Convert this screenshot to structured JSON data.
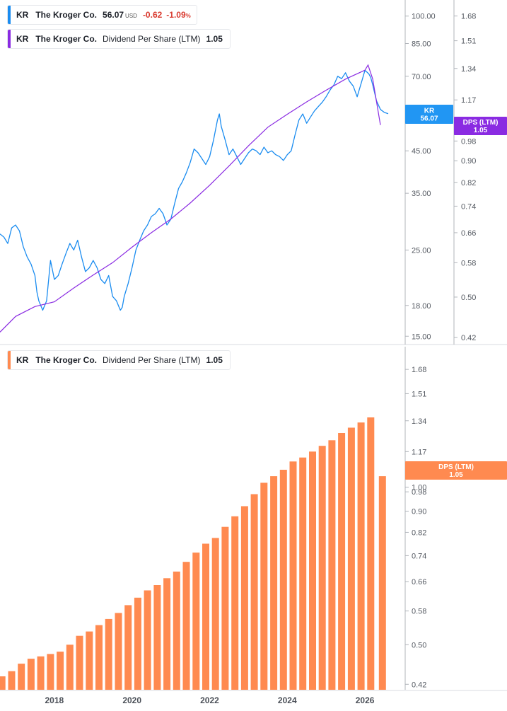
{
  "legends": {
    "price": {
      "ticker": "KR",
      "name": "The Kroger Co.",
      "value": "56.07",
      "currency": "USD",
      "change": "-0.62",
      "change_pct": "-1.09",
      "pct_symbol": "%",
      "color": "#1a8cf0"
    },
    "dps_overlay": {
      "ticker": "KR",
      "name": "The Kroger Co.",
      "label": "Dividend Per Share (LTM)",
      "value": "1.05",
      "color": "#8a2be2"
    },
    "dps_bars": {
      "ticker": "KR",
      "name": "The Kroger Co.",
      "label": "Dividend Per Share (LTM)",
      "value": "1.05",
      "color": "#ff8a50"
    }
  },
  "badges": {
    "price": {
      "line1": "KR",
      "line2": "56.07",
      "color": "#2196f3"
    },
    "dps_top": {
      "line1": "DPS (LTM)",
      "line2": "1.05",
      "color": "#8a2be2"
    },
    "dps_bottom": {
      "line1": "DPS (LTM)",
      "line2": "1.05",
      "color": "#ff8a50"
    }
  },
  "chart_data": [
    {
      "type": "line",
      "series": [
        {
          "name": "KR",
          "color": "#1a8cf0",
          "axis": "price",
          "x": [
            2016.6,
            2016.7,
            2016.8,
            2016.9,
            2017.0,
            2017.1,
            2017.2,
            2017.3,
            2017.4,
            2017.5,
            2017.55,
            2017.6,
            2017.7,
            2017.8,
            2017.9,
            2018.0,
            2018.1,
            2018.2,
            2018.3,
            2018.4,
            2018.5,
            2018.6,
            2018.7,
            2018.8,
            2018.9,
            2019.0,
            2019.1,
            2019.2,
            2019.3,
            2019.4,
            2019.5,
            2019.6,
            2019.7,
            2019.75,
            2019.8,
            2019.9,
            2020.0,
            2020.1,
            2020.2,
            2020.3,
            2020.4,
            2020.5,
            2020.6,
            2020.7,
            2020.8,
            2020.9,
            2021.0,
            2021.1,
            2021.2,
            2021.3,
            2021.4,
            2021.5,
            2021.6,
            2021.7,
            2021.8,
            2021.9,
            2022.0,
            2022.1,
            2022.2,
            2022.25,
            2022.3,
            2022.4,
            2022.5,
            2022.6,
            2022.7,
            2022.8,
            2022.9,
            2023.0,
            2023.1,
            2023.2,
            2023.3,
            2023.4,
            2023.5,
            2023.6,
            2023.7,
            2023.8,
            2023.9,
            2024.0,
            2024.1,
            2024.2,
            2024.3,
            2024.4,
            2024.5,
            2024.6,
            2024.7,
            2024.8,
            2024.9,
            2025.0,
            2025.1,
            2025.2,
            2025.3,
            2025.4,
            2025.5,
            2025.6,
            2025.7,
            2025.8,
            2025.9,
            2026.0,
            2026.1,
            2026.15,
            2026.2,
            2026.3,
            2026.4,
            2026.5,
            2026.6
          ],
          "values": [
            27.5,
            27.0,
            26.0,
            28.5,
            29.0,
            28.0,
            25.5,
            24.0,
            23.0,
            21.5,
            19.5,
            18.5,
            17.5,
            18.5,
            23.5,
            21.0,
            21.5,
            23.0,
            24.5,
            26.0,
            25.0,
            26.5,
            24.0,
            22.0,
            22.5,
            23.5,
            22.5,
            21.0,
            20.5,
            21.5,
            19.0,
            18.5,
            17.5,
            17.8,
            19.0,
            20.5,
            22.5,
            25.0,
            26.5,
            28.0,
            29.0,
            30.5,
            31.0,
            32.0,
            31.0,
            29.0,
            30.0,
            33.0,
            36.0,
            37.5,
            39.5,
            42.0,
            45.5,
            44.5,
            43.0,
            41.5,
            43.5,
            48.0,
            54.0,
            56.0,
            52.0,
            48.0,
            44.0,
            45.5,
            43.5,
            41.5,
            43.0,
            44.5,
            45.5,
            45.0,
            44.0,
            46.0,
            44.5,
            45.0,
            44.0,
            43.5,
            42.5,
            44.0,
            45.0,
            49.5,
            54.0,
            56.0,
            53.0,
            55.0,
            57.0,
            58.5,
            60.0,
            62.0,
            64.5,
            66.5,
            70.0,
            69.0,
            71.5,
            68.0,
            66.0,
            62.0,
            67.0,
            72.5,
            71.0,
            69.5,
            66.5,
            60.5,
            57.5,
            56.5,
            56.07
          ]
        },
        {
          "name": "Dividend Per Share (LTM)",
          "color": "#8a2be2",
          "axis": "dps",
          "x": [
            2016.6,
            2017.0,
            2017.5,
            2018.0,
            2018.5,
            2019.0,
            2019.5,
            2020.0,
            2020.5,
            2021.0,
            2021.5,
            2022.0,
            2022.5,
            2023.0,
            2023.5,
            2024.0,
            2024.5,
            2025.0,
            2025.5,
            2026.0,
            2026.08,
            2026.2,
            2026.3,
            2026.4
          ],
          "values": [
            0.43,
            0.46,
            0.48,
            0.49,
            0.52,
            0.55,
            0.58,
            0.62,
            0.66,
            0.7,
            0.75,
            0.81,
            0.88,
            0.96,
            1.04,
            1.1,
            1.16,
            1.22,
            1.28,
            1.33,
            1.36,
            1.28,
            1.16,
            1.05
          ]
        }
      ],
      "price_axis": {
        "ticks": [
          15,
          18,
          25,
          35,
          45,
          70,
          85,
          100
        ],
        "tick_labels": [
          "15.00",
          "18.00",
          "25.00",
          "35.00",
          "45.00",
          "70.00",
          "85.00",
          "100.00"
        ],
        "scale": "log",
        "ylim": [
          14.4,
          110
        ]
      },
      "dps_axis": {
        "ticks": [
          0.42,
          0.5,
          0.58,
          0.66,
          0.74,
          0.82,
          0.9,
          0.98,
          1.17,
          1.34,
          1.51,
          1.68
        ],
        "tick_labels": [
          "0.42",
          "0.50",
          "0.58",
          "0.66",
          "0.74",
          "0.82",
          "0.90",
          "0.98",
          "1.17",
          "1.34",
          "1.51",
          "1.68"
        ],
        "scale": "log",
        "ylim": [
          0.41,
          1.8
        ]
      }
    },
    {
      "type": "bar",
      "series": [
        {
          "name": "Dividend Per Share (LTM)",
          "color": "#ff8a50",
          "x": [
            2016.65,
            2016.9,
            2017.15,
            2017.4,
            2017.65,
            2017.9,
            2018.15,
            2018.4,
            2018.65,
            2018.9,
            2019.15,
            2019.4,
            2019.65,
            2019.9,
            2020.15,
            2020.4,
            2020.65,
            2020.9,
            2021.15,
            2021.4,
            2021.65,
            2021.9,
            2022.15,
            2022.4,
            2022.65,
            2022.9,
            2023.15,
            2023.4,
            2023.65,
            2023.9,
            2024.15,
            2024.4,
            2024.65,
            2024.9,
            2025.15,
            2025.4,
            2025.65,
            2025.9,
            2026.15,
            2026.45
          ],
          "values": [
            0.435,
            0.445,
            0.46,
            0.47,
            0.475,
            0.48,
            0.485,
            0.5,
            0.52,
            0.53,
            0.545,
            0.56,
            0.575,
            0.595,
            0.615,
            0.635,
            0.65,
            0.67,
            0.69,
            0.72,
            0.75,
            0.78,
            0.8,
            0.84,
            0.88,
            0.92,
            0.97,
            1.02,
            1.05,
            1.08,
            1.12,
            1.14,
            1.17,
            1.2,
            1.23,
            1.27,
            1.3,
            1.33,
            1.36,
            1.05
          ]
        }
      ],
      "axis": {
        "ticks": [
          0.42,
          0.5,
          0.58,
          0.66,
          0.74,
          0.82,
          0.9,
          0.98,
          1.0,
          1.17,
          1.34,
          1.51,
          1.68
        ],
        "tick_labels": [
          "0.42",
          "0.50",
          "0.58",
          "0.66",
          "0.74",
          "0.82",
          "0.90",
          "0.98",
          "1.00",
          "1.17",
          "1.34",
          "1.51",
          "1.68"
        ],
        "scale": "log",
        "ylim": [
          0.41,
          1.8
        ]
      },
      "x_ticks": [
        2018,
        2020,
        2022,
        2024,
        2026
      ],
      "x_tick_labels": [
        "2018",
        "2020",
        "2022",
        "2024",
        "2026"
      ],
      "xlim": [
        2016.6,
        2026.8
      ],
      "grid": false
    }
  ]
}
